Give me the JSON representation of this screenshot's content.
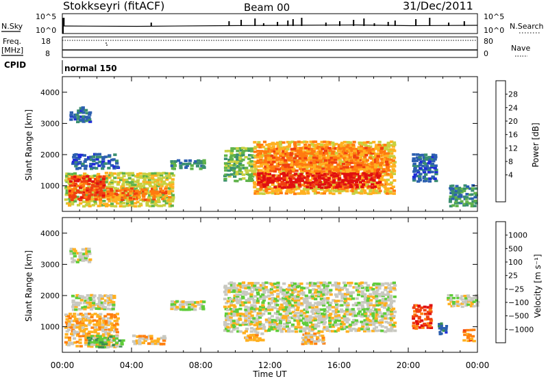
{
  "header": {
    "station": "Stokkseyri (fitACF)",
    "beam": "Beam 00",
    "date": "31/Dec/2011"
  },
  "nsky_panel": {
    "left_label": "N.Sky",
    "right_label": "N.Search",
    "left_ticks": [
      "10^5",
      "10^0"
    ],
    "right_ticks": [
      "10^5",
      "10^0"
    ],
    "spike_hours": [
      0.05,
      5.1,
      9.6,
      10.3,
      11.1,
      11.6,
      12.4,
      13.0,
      13.3,
      13.8,
      15.2,
      16.0,
      16.8,
      17.4,
      18.0,
      18.8,
      19.2,
      20.4,
      21.2,
      22.3,
      23.2
    ]
  },
  "freq_panel": {
    "left_label": "Freq.",
    "left_unit": "[MHz]",
    "right_label": "Nave",
    "left_ticks": [
      "18",
      "8"
    ],
    "right_ticks": [
      "80",
      "0"
    ]
  },
  "cpid": {
    "label": "CPID",
    "mode": "normal 150"
  },
  "chart_data": [
    {
      "type": "heatmap",
      "name": "power",
      "ylabel": "Slant Range [km]",
      "colorbar_label": "Power [dB]",
      "colorbar_ticks": [
        "28",
        "24",
        "20",
        "16",
        "12",
        "8",
        "4"
      ],
      "colorbar_colors": [
        "#1f2bd8",
        "#2c5fb0",
        "#3a8f70",
        "#5fb24a",
        "#c8d040",
        "#ffb020",
        "#ff7a10",
        "#f04010",
        "#e01010"
      ],
      "y_ticks": [
        "1000",
        "2000",
        "3000",
        "4000"
      ],
      "yrange_km": [
        180,
        4500
      ],
      "regions": [
        {
          "t0": 0.1,
          "t1": 6.4,
          "r0": 300,
          "r1": 1400,
          "level": 4
        },
        {
          "t0": 0.3,
          "t1": 2.4,
          "r0": 500,
          "r1": 1300,
          "level": 7
        },
        {
          "t0": 2.5,
          "t1": 6.2,
          "r0": 500,
          "r1": 900,
          "level": 6
        },
        {
          "t0": 0.5,
          "t1": 3.2,
          "r0": 1500,
          "r1": 2000,
          "level": 1
        },
        {
          "t0": 0.4,
          "t1": 1.6,
          "r0": 3000,
          "r1": 3500,
          "level": 1
        },
        {
          "t0": 6.2,
          "t1": 8.2,
          "r0": 1500,
          "r1": 1800,
          "level": 2
        },
        {
          "t0": 9.3,
          "t1": 11.0,
          "r0": 1100,
          "r1": 2200,
          "level": 3
        },
        {
          "t0": 11.0,
          "t1": 19.2,
          "r0": 700,
          "r1": 2400,
          "level": 5
        },
        {
          "t0": 11.2,
          "t1": 18.4,
          "r0": 900,
          "r1": 1400,
          "level": 8
        },
        {
          "t0": 11.6,
          "t1": 18.8,
          "r0": 1400,
          "r1": 2200,
          "level": 6
        },
        {
          "t0": 20.2,
          "t1": 21.6,
          "r0": 1100,
          "r1": 2000,
          "level": 1
        },
        {
          "t0": 22.3,
          "t1": 23.9,
          "r0": 300,
          "r1": 1000,
          "level": 2
        }
      ]
    },
    {
      "type": "heatmap",
      "name": "velocity",
      "ylabel": "Slant Range [km]",
      "colorbar_label": "Velocity [m s⁻¹]",
      "colorbar_ticks": [
        "1000",
        "500",
        "100",
        "25",
        "−25",
        "−100",
        "−500",
        "−1000"
      ],
      "colorbar_colors": [
        "#1f2bd8",
        "#2c5fb0",
        "#3a8f50",
        "#5fcc3a",
        "#c8c8c0",
        "#ffb020",
        "#ff8010",
        "#f04010",
        "#e01010"
      ],
      "y_ticks": [
        "1000",
        "2000",
        "3000",
        "4000"
      ],
      "yrange_km": [
        180,
        4500
      ],
      "regions": [
        {
          "t0": 0.1,
          "t1": 3.2,
          "r0": 300,
          "r1": 1400,
          "level": 5
        },
        {
          "t0": 1.4,
          "t1": 3.5,
          "r0": 300,
          "r1": 700,
          "level": 3
        },
        {
          "t0": 4.0,
          "t1": 5.9,
          "r0": 400,
          "r1": 700,
          "level": 5
        },
        {
          "t0": 0.5,
          "t1": 3.0,
          "r0": 1500,
          "r1": 2000,
          "level": 4
        },
        {
          "t0": 0.4,
          "t1": 1.6,
          "r0": 3000,
          "r1": 3500,
          "level": 4
        },
        {
          "t0": 6.2,
          "t1": 8.2,
          "r0": 1500,
          "r1": 1800,
          "level": 4
        },
        {
          "t0": 9.3,
          "t1": 19.2,
          "r0": 800,
          "r1": 2400,
          "level": 4
        },
        {
          "t0": 10.4,
          "t1": 11.6,
          "r0": 500,
          "r1": 800,
          "level": 5
        },
        {
          "t0": 13.8,
          "t1": 15.1,
          "r0": 400,
          "r1": 800,
          "level": 5
        },
        {
          "t0": 20.2,
          "t1": 21.3,
          "r0": 900,
          "r1": 1700,
          "level": 7
        },
        {
          "t0": 21.7,
          "t1": 22.2,
          "r0": 700,
          "r1": 1100,
          "level": 1
        },
        {
          "t0": 22.2,
          "t1": 24.0,
          "r0": 1600,
          "r1": 2000,
          "level": 4
        },
        {
          "t0": 23.1,
          "t1": 23.8,
          "r0": 500,
          "r1": 900,
          "level": 6
        }
      ]
    }
  ],
  "time_axis": {
    "ticks": [
      "00:00",
      "04:00",
      "08:00",
      "12:00",
      "16:00",
      "20:00",
      "00:00"
    ],
    "label": "Time UT"
  }
}
